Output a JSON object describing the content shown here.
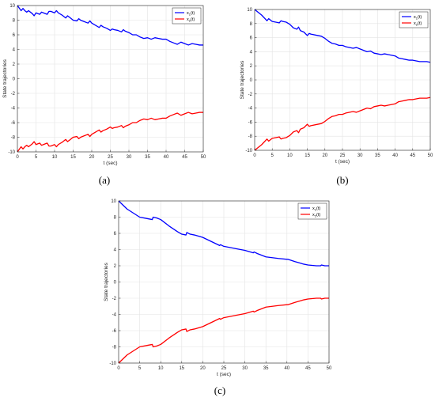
{
  "captions": [
    "(a)",
    "(b)",
    "(c)"
  ],
  "chart_data": [
    {
      "type": "line",
      "xlabel": "t (sec)",
      "ylabel": "State trajectories",
      "xlim": [
        0,
        50
      ],
      "ylim": [
        -10,
        10
      ],
      "xticks": [
        0,
        5,
        10,
        15,
        20,
        25,
        30,
        35,
        40,
        45,
        50
      ],
      "yticks": [
        -10,
        -8,
        -6,
        -4,
        -2,
        0,
        2,
        4,
        6,
        8,
        10
      ],
      "grid": true,
      "legend": "top-right",
      "series": [
        {
          "name": "x1(t)",
          "color": "#0000ff",
          "x": [
            0,
            1,
            1.5,
            2,
            2.5,
            3,
            4,
            4.5,
            5,
            6,
            6.5,
            7,
            8,
            8.5,
            9,
            10,
            10.5,
            11,
            12,
            13,
            13.5,
            14,
            15,
            16,
            16.5,
            17,
            18,
            19,
            19.5,
            20,
            21,
            22,
            22.5,
            23,
            24,
            25,
            25.5,
            26,
            27,
            28,
            28.5,
            29,
            30,
            31,
            32,
            33,
            34,
            35,
            36,
            37,
            38,
            39,
            40,
            41,
            42,
            43,
            44,
            45,
            46,
            47,
            48,
            49,
            50
          ],
          "y": [
            10,
            9.3,
            9.6,
            9.3,
            9.1,
            9.3,
            8.9,
            8.6,
            9.0,
            8.8,
            9.1,
            9.0,
            8.8,
            9.2,
            9.2,
            9.0,
            9.3,
            9.0,
            8.7,
            8.3,
            8.6,
            8.4,
            8.0,
            7.9,
            8.2,
            8.0,
            7.8,
            7.6,
            7.9,
            7.6,
            7.3,
            7.0,
            7.3,
            7.1,
            6.9,
            6.6,
            6.8,
            6.7,
            6.6,
            6.4,
            6.7,
            6.5,
            6.3,
            6.0,
            6.0,
            5.7,
            5.5,
            5.6,
            5.4,
            5.6,
            5.5,
            5.4,
            5.4,
            5.1,
            4.9,
            4.7,
            5.0,
            4.8,
            4.6,
            4.8,
            4.7,
            4.6,
            4.6
          ]
        },
        {
          "name": "x2(t)",
          "color": "#ff0000",
          "x": [
            0,
            1,
            1.5,
            2,
            2.5,
            3,
            4,
            4.5,
            5,
            6,
            6.5,
            7,
            8,
            8.5,
            9,
            10,
            10.5,
            11,
            12,
            13,
            13.5,
            14,
            15,
            16,
            16.5,
            17,
            18,
            19,
            19.5,
            20,
            21,
            22,
            22.5,
            23,
            24,
            25,
            25.5,
            26,
            27,
            28,
            28.5,
            29,
            30,
            31,
            32,
            33,
            34,
            35,
            36,
            37,
            38,
            39,
            40,
            41,
            42,
            43,
            44,
            45,
            46,
            47,
            48,
            49,
            50
          ],
          "y": [
            -10,
            -9.3,
            -9.6,
            -9.3,
            -9.1,
            -9.3,
            -8.9,
            -8.6,
            -9.0,
            -8.8,
            -9.1,
            -9.0,
            -8.8,
            -9.2,
            -9.2,
            -9.0,
            -9.3,
            -9.0,
            -8.7,
            -8.3,
            -8.6,
            -8.4,
            -8.0,
            -7.9,
            -8.2,
            -8.0,
            -7.8,
            -7.6,
            -7.9,
            -7.6,
            -7.3,
            -7.0,
            -7.3,
            -7.1,
            -6.9,
            -6.6,
            -6.8,
            -6.7,
            -6.6,
            -6.4,
            -6.7,
            -6.5,
            -6.3,
            -6.0,
            -6.0,
            -5.7,
            -5.5,
            -5.6,
            -5.4,
            -5.6,
            -5.5,
            -5.4,
            -5.4,
            -5.1,
            -4.9,
            -4.7,
            -5.0,
            -4.8,
            -4.6,
            -4.8,
            -4.7,
            -4.6,
            -4.6
          ]
        }
      ]
    },
    {
      "type": "line",
      "xlabel": "t (sec)",
      "ylabel": "State trajectories",
      "xlim": [
        0,
        50
      ],
      "ylim": [
        -10,
        10
      ],
      "xticks": [
        0,
        5,
        10,
        15,
        20,
        25,
        30,
        35,
        40,
        45,
        50
      ],
      "yticks": [
        -10,
        -8,
        -6,
        -4,
        -2,
        0,
        2,
        4,
        6,
        8,
        10
      ],
      "grid": true,
      "legend": "top-right",
      "series": [
        {
          "name": "x1(t)",
          "color": "#0000ff",
          "x": [
            0,
            2,
            3.5,
            4,
            5,
            7,
            7.5,
            8,
            9,
            10,
            11,
            12,
            12.5,
            13,
            14,
            15,
            15.5,
            16,
            18,
            19,
            20,
            21,
            22,
            23,
            24,
            25,
            26,
            28,
            29,
            30,
            31,
            32,
            33,
            34,
            35,
            36,
            37,
            38,
            39,
            40,
            41,
            42,
            43,
            44,
            45,
            46,
            47,
            48,
            49,
            50
          ],
          "y": [
            10,
            9.2,
            8.4,
            8.7,
            8.3,
            8.1,
            8.4,
            8.3,
            8.2,
            7.9,
            7.4,
            7.2,
            7.5,
            7.0,
            6.8,
            6.3,
            6.6,
            6.5,
            6.3,
            6.2,
            5.9,
            5.5,
            5.2,
            5.1,
            4.9,
            4.9,
            4.7,
            4.5,
            4.6,
            4.4,
            4.2,
            4.0,
            4.1,
            3.8,
            3.7,
            3.6,
            3.7,
            3.6,
            3.5,
            3.4,
            3.1,
            3.0,
            2.9,
            2.8,
            2.8,
            2.7,
            2.6,
            2.6,
            2.6,
            2.5
          ]
        },
        {
          "name": "x2(t)",
          "color": "#ff0000",
          "x": [
            0,
            2,
            3.5,
            4,
            5,
            7,
            7.5,
            8,
            9,
            10,
            11,
            12,
            12.5,
            13,
            14,
            15,
            15.5,
            16,
            18,
            19,
            20,
            21,
            22,
            23,
            24,
            25,
            26,
            28,
            29,
            30,
            31,
            32,
            33,
            34,
            35,
            36,
            37,
            38,
            39,
            40,
            41,
            42,
            43,
            44,
            45,
            46,
            47,
            48,
            49,
            50
          ],
          "y": [
            -10,
            -9.2,
            -8.4,
            -8.7,
            -8.3,
            -8.1,
            -8.4,
            -8.3,
            -8.2,
            -7.9,
            -7.4,
            -7.2,
            -7.5,
            -7.0,
            -6.8,
            -6.3,
            -6.6,
            -6.5,
            -6.3,
            -6.2,
            -5.9,
            -5.5,
            -5.2,
            -5.1,
            -4.9,
            -4.9,
            -4.7,
            -4.5,
            -4.6,
            -4.4,
            -4.2,
            -4.0,
            -4.1,
            -3.8,
            -3.7,
            -3.6,
            -3.7,
            -3.6,
            -3.5,
            -3.4,
            -3.1,
            -3.0,
            -2.9,
            -2.8,
            -2.8,
            -2.7,
            -2.6,
            -2.6,
            -2.6,
            -2.5
          ]
        }
      ]
    },
    {
      "type": "line",
      "xlabel": "t (sec)",
      "ylabel": "State trajectories",
      "xlim": [
        0,
        50
      ],
      "ylim": [
        -10,
        10
      ],
      "xticks": [
        0,
        5,
        10,
        15,
        20,
        25,
        30,
        35,
        40,
        45,
        50
      ],
      "yticks": [
        -10,
        -8,
        -6,
        -4,
        -2,
        0,
        2,
        4,
        6,
        8,
        10
      ],
      "grid": true,
      "legend": "top-right",
      "series": [
        {
          "name": "x1(t)",
          "color": "#0000ff",
          "x": [
            0,
            2,
            5,
            7,
            8,
            8.2,
            9,
            10,
            12,
            14,
            15,
            16,
            16.2,
            17,
            18,
            20,
            22,
            24,
            24.2,
            25,
            28,
            30,
            32,
            32.2,
            33,
            35,
            38,
            40,
            40.2,
            42,
            44,
            45,
            47,
            48,
            48.2,
            49,
            50
          ],
          "y": [
            10,
            9.0,
            8.0,
            7.8,
            7.7,
            8.0,
            7.9,
            7.7,
            6.9,
            6.2,
            5.9,
            5.8,
            6.1,
            5.9,
            5.8,
            5.5,
            5.0,
            4.5,
            4.6,
            4.4,
            4.1,
            3.9,
            3.6,
            3.7,
            3.5,
            3.1,
            2.9,
            2.8,
            2.8,
            2.5,
            2.2,
            2.1,
            2.0,
            2.0,
            2.1,
            2.0,
            2.0
          ]
        },
        {
          "name": "x2(t)",
          "color": "#ff0000",
          "x": [
            0,
            2,
            5,
            7,
            8,
            8.2,
            9,
            10,
            12,
            14,
            15,
            16,
            16.2,
            17,
            18,
            20,
            22,
            24,
            24.2,
            25,
            28,
            30,
            32,
            32.2,
            33,
            35,
            38,
            40,
            40.2,
            42,
            44,
            45,
            47,
            48,
            48.2,
            49,
            50
          ],
          "y": [
            -10,
            -9.0,
            -8.0,
            -7.8,
            -7.7,
            -8.0,
            -7.9,
            -7.7,
            -6.9,
            -6.2,
            -5.9,
            -5.8,
            -6.1,
            -5.9,
            -5.8,
            -5.5,
            -5.0,
            -4.5,
            -4.6,
            -4.4,
            -4.1,
            -3.9,
            -3.6,
            -3.7,
            -3.5,
            -3.1,
            -2.9,
            -2.8,
            -2.8,
            -2.5,
            -2.2,
            -2.1,
            -2.0,
            -2.0,
            -2.1,
            -2.0,
            -2.0
          ]
        }
      ]
    }
  ]
}
